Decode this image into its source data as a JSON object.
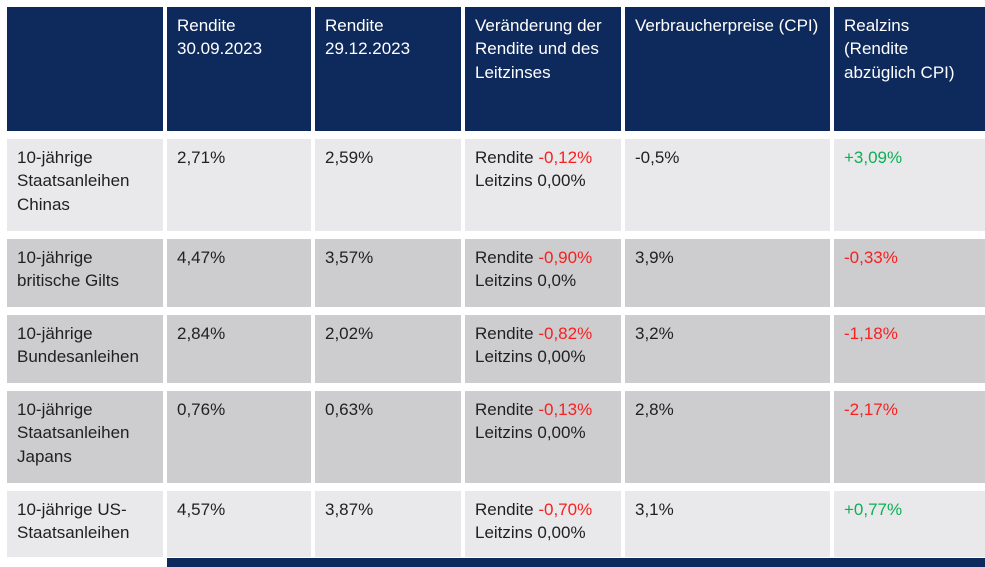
{
  "colors": {
    "header_bg": "#0e2a5c",
    "row_light_bg": "#e9e9eb",
    "row_dark_bg": "#cdcdd0",
    "negative_text": "#f82020",
    "positive_text": "#0daf54",
    "header_text": "#ffffff",
    "body_text": "#212121"
  },
  "header": {
    "col0": "",
    "col1": "Rendite 30.09.2023",
    "col2": "Rendite 29.12.2023",
    "col3": "Veränderung der Rendite und des Leitzinses",
    "col4": "Verbraucherpreise (CPI)",
    "col5": "Realzins (Rendite abzüglich CPI)"
  },
  "rows": [
    {
      "label": "10-jährige Staatsanleihen Chinas",
      "yield_sep": "2,71%",
      "yield_dec": "2,59%",
      "change_label1": "Rendite",
      "change_value1": "-0,12%",
      "change_value1_class": "negative",
      "change_label2": "Leitzins",
      "change_value2": "0,00%",
      "cpi": "-0,5%",
      "realzins": "+3,09%",
      "realzins_class": "positive"
    },
    {
      "label": "10-jährige britische Gilts",
      "yield_sep": "4,47%",
      "yield_dec": "3,57%",
      "change_label1": "Rendite",
      "change_value1": "-0,90%",
      "change_value1_class": "negative",
      "change_label2": "Leitzins",
      "change_value2": "0,0%",
      "cpi": "3,9%",
      "realzins": "-0,33%",
      "realzins_class": "negative"
    },
    {
      "label": "10-jährige Bundesanleihen",
      "yield_sep": "2,84%",
      "yield_dec": "2,02%",
      "change_label1": "Rendite",
      "change_value1": "-0,82%",
      "change_value1_class": "negative",
      "change_label2": "Leitzins",
      "change_value2": "0,00%",
      "cpi": "3,2%",
      "realzins": "-1,18%",
      "realzins_class": "negative"
    },
    {
      "label": "10-jährige Staatsanleihen Japans",
      "yield_sep": "0,76%",
      "yield_dec": "0,63%",
      "change_label1": "Rendite",
      "change_value1": "-0,13%",
      "change_value1_class": "negative",
      "change_label2": "Leitzins",
      "change_value2": "0,00%",
      "cpi": "2,8%",
      "realzins": "-2,17%",
      "realzins_class": "negative"
    },
    {
      "label": "10-jährige US-Staatsanleihen",
      "yield_sep": "4,57%",
      "yield_dec": "3,87%",
      "change_label1": "Rendite",
      "change_value1": "-0,70%",
      "change_value1_class": "negative",
      "change_label2": "Leitzins",
      "change_value2": "0,00%",
      "cpi": "3,1%",
      "realzins": "+0,77%",
      "realzins_class": "positive"
    }
  ],
  "chart_data": {
    "type": "table",
    "title": "",
    "columns": [
      "",
      "Rendite 30.09.2023",
      "Rendite 29.12.2023",
      "Veränderung der Rendite und des Leitzinses",
      "Verbraucherpreise (CPI)",
      "Realzins (Rendite abzüglich CPI)"
    ],
    "rows": [
      [
        "10-jährige Staatsanleihen Chinas",
        "2,71%",
        "2,59%",
        "Rendite -0,12% / Leitzins 0,00%",
        "-0,5%",
        "+3,09%"
      ],
      [
        "10-jährige britische Gilts",
        "4,47%",
        "3,57%",
        "Rendite -0,90% / Leitzins 0,0%",
        "3,9%",
        "-0,33%"
      ],
      [
        "10-jährige Bundesanleihen",
        "2,84%",
        "2,02%",
        "Rendite -0,82% / Leitzins 0,00%",
        "3,2%",
        "-1,18%"
      ],
      [
        "10-jährige Staatsanleihen Japans",
        "0,76%",
        "0,63%",
        "Rendite -0,13% / Leitzins 0,00%",
        "2,8%",
        "-2,17%"
      ],
      [
        "10-jährige US-Staatsanleihen",
        "4,57%",
        "3,87%",
        "Rendite -0,70% / Leitzins 0,00%",
        "3,1%",
        "+0,77%"
      ]
    ]
  }
}
